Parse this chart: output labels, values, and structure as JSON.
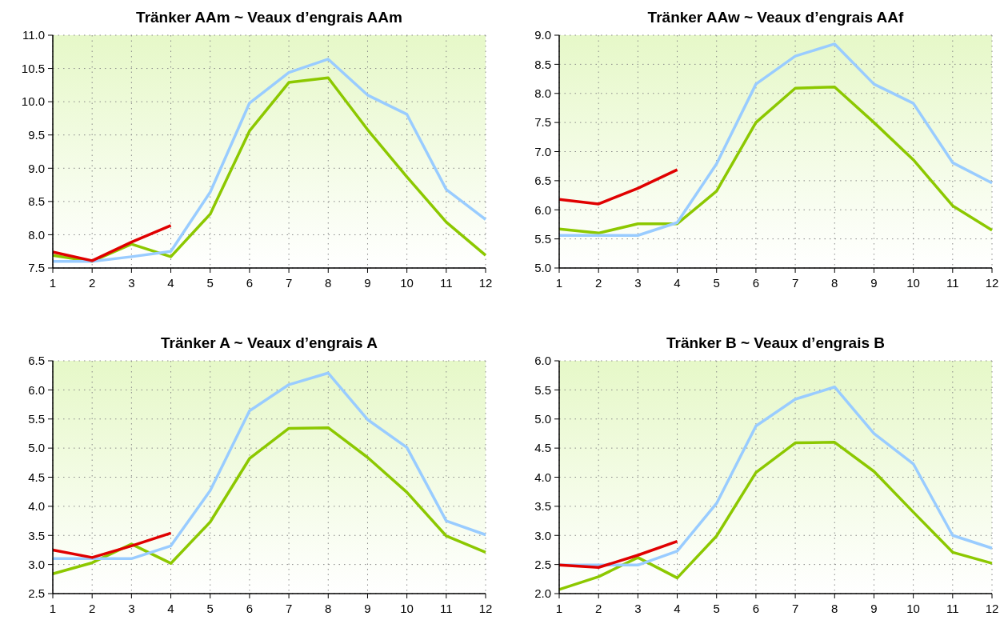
{
  "chart_data": [
    {
      "type": "line",
      "title": "Tränker AAm ~ Veaux d’engrais AAm",
      "x": [
        1,
        2,
        3,
        4,
        5,
        6,
        7,
        8,
        9,
        10,
        11,
        12
      ],
      "xlim": [
        1,
        12
      ],
      "xticks": [
        1,
        2,
        3,
        4,
        5,
        6,
        7,
        8,
        9,
        10,
        11,
        12
      ],
      "ylim": [
        7.5,
        11.0
      ],
      "yticks": [
        {
          "value": 7.5,
          "label": "7.5"
        },
        {
          "value": 8,
          "label": "8.0"
        },
        {
          "value": 8.5,
          "label": "8.5"
        },
        {
          "value": 9,
          "label": "9.0"
        },
        {
          "value": 9.5,
          "label": "9.5"
        },
        {
          "value": 10,
          "label": "10.0"
        },
        {
          "value": 10.5,
          "label": "10.5"
        },
        {
          "value": 11,
          "label": "11.0"
        }
      ],
      "grid": true,
      "marker": "none",
      "line_style": "solid",
      "series": [
        {
          "color": "#8cc800",
          "values": [
            7.69,
            7.6,
            7.86,
            7.67,
            8.31,
            9.56,
            10.29,
            10.36,
            9.58,
            8.87,
            8.19,
            7.69
          ]
        },
        {
          "color": "#99ccff",
          "values": [
            7.6,
            7.6,
            7.67,
            7.75,
            8.64,
            9.98,
            10.44,
            10.64,
            10.1,
            9.81,
            8.68,
            8.23
          ]
        },
        {
          "color": "#e00000",
          "values": [
            7.74,
            7.61,
            7.89,
            8.14,
            null,
            null,
            null,
            null,
            null,
            null,
            null,
            null
          ]
        }
      ]
    },
    {
      "type": "line",
      "title": "Tränker AAw ~ Veaux d’engrais AAf",
      "x": [
        1,
        2,
        3,
        4,
        5,
        6,
        7,
        8,
        9,
        10,
        11,
        12
      ],
      "xlim": [
        1,
        12
      ],
      "xticks": [
        1,
        2,
        3,
        4,
        5,
        6,
        7,
        8,
        9,
        10,
        11,
        12
      ],
      "ylim": [
        5.0,
        9.0
      ],
      "yticks": [
        {
          "value": 5,
          "label": "5.0"
        },
        {
          "value": 5.5,
          "label": "5.5"
        },
        {
          "value": 6,
          "label": "6.0"
        },
        {
          "value": 6.5,
          "label": "6.5"
        },
        {
          "value": 7,
          "label": "7.0"
        },
        {
          "value": 7.5,
          "label": "7.5"
        },
        {
          "value": 8,
          "label": "8.0"
        },
        {
          "value": 8.5,
          "label": "8.5"
        },
        {
          "value": 9,
          "label": "9.0"
        }
      ],
      "grid": true,
      "marker": "none",
      "line_style": "solid",
      "series": [
        {
          "color": "#8cc800",
          "values": [
            5.67,
            5.6,
            5.76,
            5.76,
            6.32,
            7.5,
            8.09,
            8.11,
            7.5,
            6.86,
            6.07,
            5.65
          ]
        },
        {
          "color": "#99ccff",
          "values": [
            5.56,
            5.56,
            5.56,
            5.78,
            6.79,
            8.16,
            8.64,
            8.85,
            8.16,
            7.83,
            6.81,
            6.46
          ]
        },
        {
          "color": "#e00000",
          "values": [
            6.18,
            6.1,
            6.37,
            6.69,
            null,
            null,
            null,
            null,
            null,
            null,
            null,
            null
          ]
        }
      ]
    },
    {
      "type": "line",
      "title": "Tränker A ~ Veaux d’engrais A",
      "x": [
        1,
        2,
        3,
        4,
        5,
        6,
        7,
        8,
        9,
        10,
        11,
        12
      ],
      "xlim": [
        1,
        12
      ],
      "xticks": [
        1,
        2,
        3,
        4,
        5,
        6,
        7,
        8,
        9,
        10,
        11,
        12
      ],
      "ylim": [
        2.5,
        6.5
      ],
      "yticks": [
        {
          "value": 2.5,
          "label": "2.5"
        },
        {
          "value": 3,
          "label": "3.0"
        },
        {
          "value": 3.5,
          "label": "3.5"
        },
        {
          "value": 4,
          "label": "4.0"
        },
        {
          "value": 4.5,
          "label": "4.5"
        },
        {
          "value": 5,
          "label": "5.0"
        },
        {
          "value": 5.5,
          "label": "5.5"
        },
        {
          "value": 6,
          "label": "6.0"
        },
        {
          "value": 6.5,
          "label": "6.5"
        }
      ],
      "grid": true,
      "marker": "none",
      "line_style": "solid",
      "series": [
        {
          "color": "#8cc800",
          "values": [
            2.84,
            3.03,
            3.35,
            3.02,
            3.73,
            4.82,
            5.34,
            5.35,
            4.84,
            4.24,
            3.49,
            3.21
          ]
        },
        {
          "color": "#99ccff",
          "values": [
            3.1,
            3.1,
            3.1,
            3.32,
            4.27,
            5.64,
            6.09,
            6.29,
            5.49,
            5.01,
            3.75,
            3.51
          ]
        },
        {
          "color": "#e00000",
          "values": [
            3.25,
            3.12,
            3.32,
            3.54,
            null,
            null,
            null,
            null,
            null,
            null,
            null,
            null
          ]
        }
      ]
    },
    {
      "type": "line",
      "title": "Tränker B ~ Veaux d’engrais B",
      "x": [
        1,
        2,
        3,
        4,
        5,
        6,
        7,
        8,
        9,
        10,
        11,
        12
      ],
      "xlim": [
        1,
        12
      ],
      "xticks": [
        1,
        2,
        3,
        4,
        5,
        6,
        7,
        8,
        9,
        10,
        11,
        12
      ],
      "ylim": [
        2.0,
        6.0
      ],
      "yticks": [
        {
          "value": 2,
          "label": "2.0"
        },
        {
          "value": 2.5,
          "label": "2.5"
        },
        {
          "value": 3,
          "label": "3.0"
        },
        {
          "value": 3.5,
          "label": "3.5"
        },
        {
          "value": 4,
          "label": "4.0"
        },
        {
          "value": 4.5,
          "label": "4.5"
        },
        {
          "value": 5,
          "label": "5.0"
        },
        {
          "value": 5.5,
          "label": "5.5"
        },
        {
          "value": 6,
          "label": "6.0"
        }
      ],
      "grid": true,
      "marker": "none",
      "line_style": "solid",
      "series": [
        {
          "color": "#8cc800",
          "values": [
            2.07,
            2.29,
            2.62,
            2.27,
            2.99,
            4.08,
            4.59,
            4.6,
            4.1,
            3.4,
            2.71,
            2.52
          ]
        },
        {
          "color": "#99ccff",
          "values": [
            2.49,
            2.49,
            2.49,
            2.73,
            3.55,
            4.88,
            5.34,
            5.55,
            4.75,
            4.23,
            3.0,
            2.78
          ]
        },
        {
          "color": "#e00000",
          "values": [
            2.49,
            2.45,
            2.66,
            2.9,
            null,
            null,
            null,
            null,
            null,
            null,
            null,
            null
          ]
        }
      ]
    }
  ]
}
